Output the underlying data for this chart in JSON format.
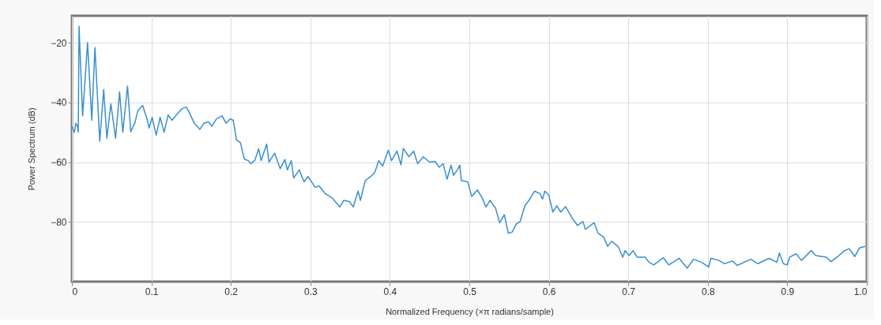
{
  "chart_data": {
    "type": "line",
    "xlabel": "Normalized Frequency (×π radians/sample)",
    "ylabel": "Power Spectrum (dB)",
    "xlim": [
      0,
      1
    ],
    "ylim": [
      -100,
      -11
    ],
    "xticks": [
      0,
      0.1,
      0.2,
      0.3,
      0.4,
      0.5,
      0.6,
      0.7,
      0.8,
      0.9,
      {
        "value": 1,
        "label": "1.0"
      }
    ],
    "yticks": [
      -80,
      -60,
      -40,
      -20
    ],
    "grid": true,
    "marker": "none",
    "line_style": "solid",
    "series": [
      {
        "color": "#3a8fd0",
        "x": [
          0,
          0.003,
          0.005,
          0.007,
          0.008,
          0.009,
          0.0135,
          0.0197,
          0.025,
          0.029,
          0.035,
          0.04,
          0.044,
          0.049,
          0.055,
          0.06,
          0.064,
          0.07,
          0.074,
          0.079,
          0.083,
          0.089,
          0.095,
          0.097,
          0.101,
          0.106,
          0.111,
          0.116,
          0.121,
          0.126,
          0.132,
          0.139,
          0.144,
          0.147,
          0.154,
          0.161,
          0.166,
          0.172,
          0.176,
          0.182,
          0.189,
          0.194,
          0.199,
          0.203,
          0.207,
          0.212,
          0.217,
          0.222,
          0.225,
          0.23,
          0.235,
          0.238,
          0.245,
          0.248,
          0.255,
          0.262,
          0.268,
          0.271,
          0.276,
          0.279,
          0.286,
          0.292,
          0.297,
          0.306,
          0.311,
          0.319,
          0.327,
          0.337,
          0.342,
          0.349,
          0.354,
          0.36,
          0.363,
          0.369,
          0.376,
          0.381,
          0.386,
          0.391,
          0.398,
          0.402,
          0.409,
          0.414,
          0.417,
          0.424,
          0.43,
          0.435,
          0.442,
          0.45,
          0.457,
          0.462,
          0.467,
          0.472,
          0.477,
          0.48,
          0.485,
          0.488,
          0.49,
          0.498,
          0.503,
          0.51,
          0.516,
          0.521,
          0.526,
          0.533,
          0.538,
          0.544,
          0.549,
          0.554,
          0.559,
          0.564,
          0.57,
          0.575,
          0.582,
          0.589,
          0.592,
          0.595,
          0.6,
          0.605,
          0.61,
          0.615,
          0.621,
          0.63,
          0.636,
          0.643,
          0.646,
          0.657,
          0.662,
          0.669,
          0.674,
          0.679,
          0.687,
          0.693,
          0.696,
          0.701,
          0.706,
          0.711,
          0.721,
          0.726,
          0.732,
          0.744,
          0.751,
          0.764,
          0.774,
          0.782,
          0.792,
          0.801,
          0.804,
          0.814,
          0.821,
          0.831,
          0.837,
          0.854,
          0.863,
          0.877,
          0.887,
          0.89,
          0.895,
          0.9,
          0.903,
          0.911,
          0.918,
          0.93,
          0.936,
          0.949,
          0.955,
          0.965,
          0.972,
          0.978,
          0.985,
          0.991,
          0.998
        ],
        "values": [
          -48,
          -50,
          -47,
          -48,
          -50,
          -14.5,
          -44.5,
          -20,
          -46,
          -21.6,
          -53,
          -35.7,
          -52,
          -40.5,
          -52,
          -36.5,
          -50,
          -34.5,
          -49.8,
          -47,
          -42.8,
          -41,
          -46,
          -48.6,
          -45,
          -51,
          -45,
          -50,
          -44.2,
          -46,
          -44,
          -42,
          -41.6,
          -43,
          -47,
          -49,
          -47,
          -46.5,
          -48,
          -45.5,
          -44.5,
          -47,
          -45.5,
          -46,
          -52.5,
          -53.5,
          -59,
          -59.5,
          -60.5,
          -59.5,
          -55.5,
          -59.5,
          -54,
          -60,
          -57,
          -62.2,
          -59.1,
          -62.6,
          -59.5,
          -65.3,
          -62.6,
          -66.6,
          -64.8,
          -68.4,
          -68,
          -70.6,
          -71.9,
          -75,
          -72.8,
          -73.2,
          -75,
          -69.7,
          -72.8,
          -66.2,
          -64.8,
          -63.5,
          -59.5,
          -61.3,
          -56,
          -59.5,
          -56.3,
          -60.9,
          -55.4,
          -58.2,
          -56.3,
          -60.5,
          -58.2,
          -60,
          -59.8,
          -61.7,
          -60.5,
          -65.7,
          -61,
          -64.4,
          -62.6,
          -61,
          -66.2,
          -66.6,
          -71.5,
          -69.3,
          -71.9,
          -75,
          -72.8,
          -75.4,
          -80.3,
          -77.6,
          -83.8,
          -83.4,
          -80.7,
          -79.8,
          -74.5,
          -72.8,
          -69.7,
          -70.6,
          -72.4,
          -69.7,
          -71.1,
          -76.7,
          -74.6,
          -76.7,
          -74.9,
          -79,
          -81.2,
          -79.9,
          -82.5,
          -80.3,
          -83.8,
          -85.1,
          -88.2,
          -86.5,
          -88.2,
          -91.8,
          -89.6,
          -91.3,
          -89.6,
          -91.8,
          -91.8,
          -93.5,
          -94.4,
          -92,
          -94.4,
          -92.2,
          -95.5,
          -92.5,
          -93.5,
          -95.1,
          -92.2,
          -92.9,
          -94,
          -93.1,
          -94.6,
          -92.5,
          -94,
          -92.2,
          -93.5,
          -90.4,
          -94,
          -94.4,
          -91.8,
          -90.7,
          -92.9,
          -89.6,
          -91.3,
          -91.8,
          -93.3,
          -91.3,
          -89.6,
          -89,
          -91.6,
          -88.7,
          -88.2
        ]
      }
    ]
  }
}
